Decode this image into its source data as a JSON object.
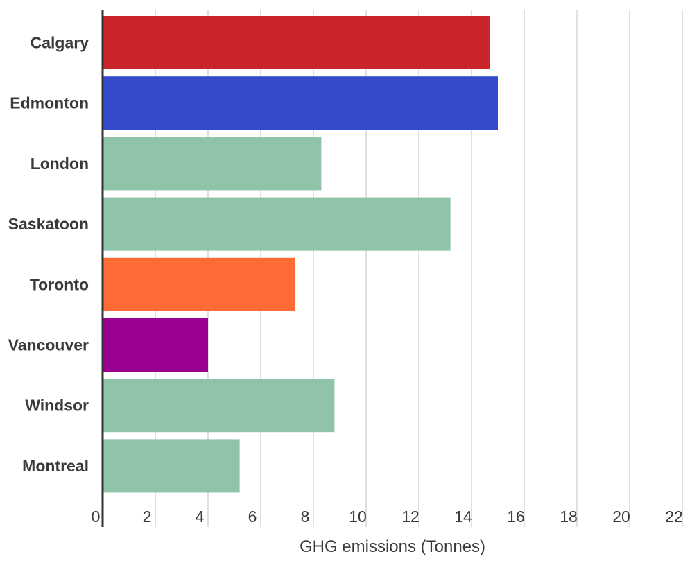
{
  "chart_data": {
    "type": "bar",
    "orientation": "horizontal",
    "categories": [
      "Calgary",
      "Edmonton",
      "London",
      "Saskatoon",
      "Toronto",
      "Vancouver",
      "Windsor",
      "Montreal"
    ],
    "values": [
      14.7,
      15.0,
      8.3,
      13.2,
      7.3,
      4.0,
      8.8,
      5.2
    ],
    "colors": [
      "#c9252a",
      "#334bc9",
      "#90c4a8",
      "#90c4a8",
      "#ff6b35",
      "#990090",
      "#90c4a8",
      "#90c4a8"
    ],
    "xticks": [
      "0",
      "2",
      "4",
      "6",
      "8",
      "10",
      "12",
      "14",
      "16",
      "18",
      "20",
      "22"
    ],
    "xlim": [
      0,
      22
    ],
    "xlabel": "GHG emissions (Tonnes)",
    "ylabel": "",
    "title": "",
    "grid": true,
    "legend": "none"
  }
}
